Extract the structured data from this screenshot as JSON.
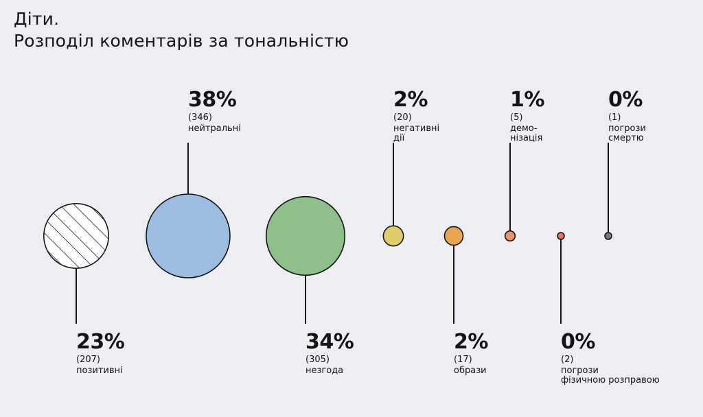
{
  "title_line1": "Діти.",
  "title_line2": "Розподіл коментарів за тональністю",
  "chart_data": {
    "type": "bubble",
    "title": "Діти. Розподіл коментарів за тональністю",
    "categories": [
      "позитивні",
      "нейтральні",
      "незгода",
      "негативні дії",
      "образи",
      "демонізація",
      "погрози фізичною розправою",
      "погрози смертю"
    ],
    "series": [
      {
        "values": [
          23,
          38,
          34,
          2,
          2,
          1,
          0,
          0
        ]
      }
    ],
    "items": [
      {
        "label": [
          "позитивні"
        ],
        "percent": "23%",
        "count": "(207)",
        "value": 207,
        "color": "#ffffff",
        "pattern": "hatch",
        "label_pos": "below"
      },
      {
        "label": [
          "нейтральні"
        ],
        "percent": "38%",
        "count": "(346)",
        "value": 346,
        "color": "#9bbde0",
        "label_pos": "above"
      },
      {
        "label": [
          "незгода"
        ],
        "percent": "34%",
        "count": "(305)",
        "value": 305,
        "color": "#8ec08a",
        "label_pos": "below"
      },
      {
        "label": [
          "негативні",
          "дії"
        ],
        "percent": "2%",
        "count": "(20)",
        "value": 20,
        "color": "#e2cc6a",
        "label_pos": "above"
      },
      {
        "label": [
          "образи"
        ],
        "percent": "2%",
        "count": "(17)",
        "value": 17,
        "color": "#e8a44e",
        "label_pos": "below"
      },
      {
        "label": [
          "демо-",
          "нізація"
        ],
        "percent": "1%",
        "count": "(5)",
        "value": 5,
        "color": "#ef9468",
        "label_pos": "above"
      },
      {
        "label": [
          "погрози",
          "фізичною розправою"
        ],
        "percent": "0%",
        "count": "(2)",
        "value": 2,
        "color": "#e86b6e",
        "label_pos": "below"
      },
      {
        "label": [
          "погрози",
          "смертю"
        ],
        "percent": "0%",
        "count": "(1)",
        "value": 1,
        "color": "#7a7a7a",
        "label_pos": "above"
      }
    ]
  }
}
